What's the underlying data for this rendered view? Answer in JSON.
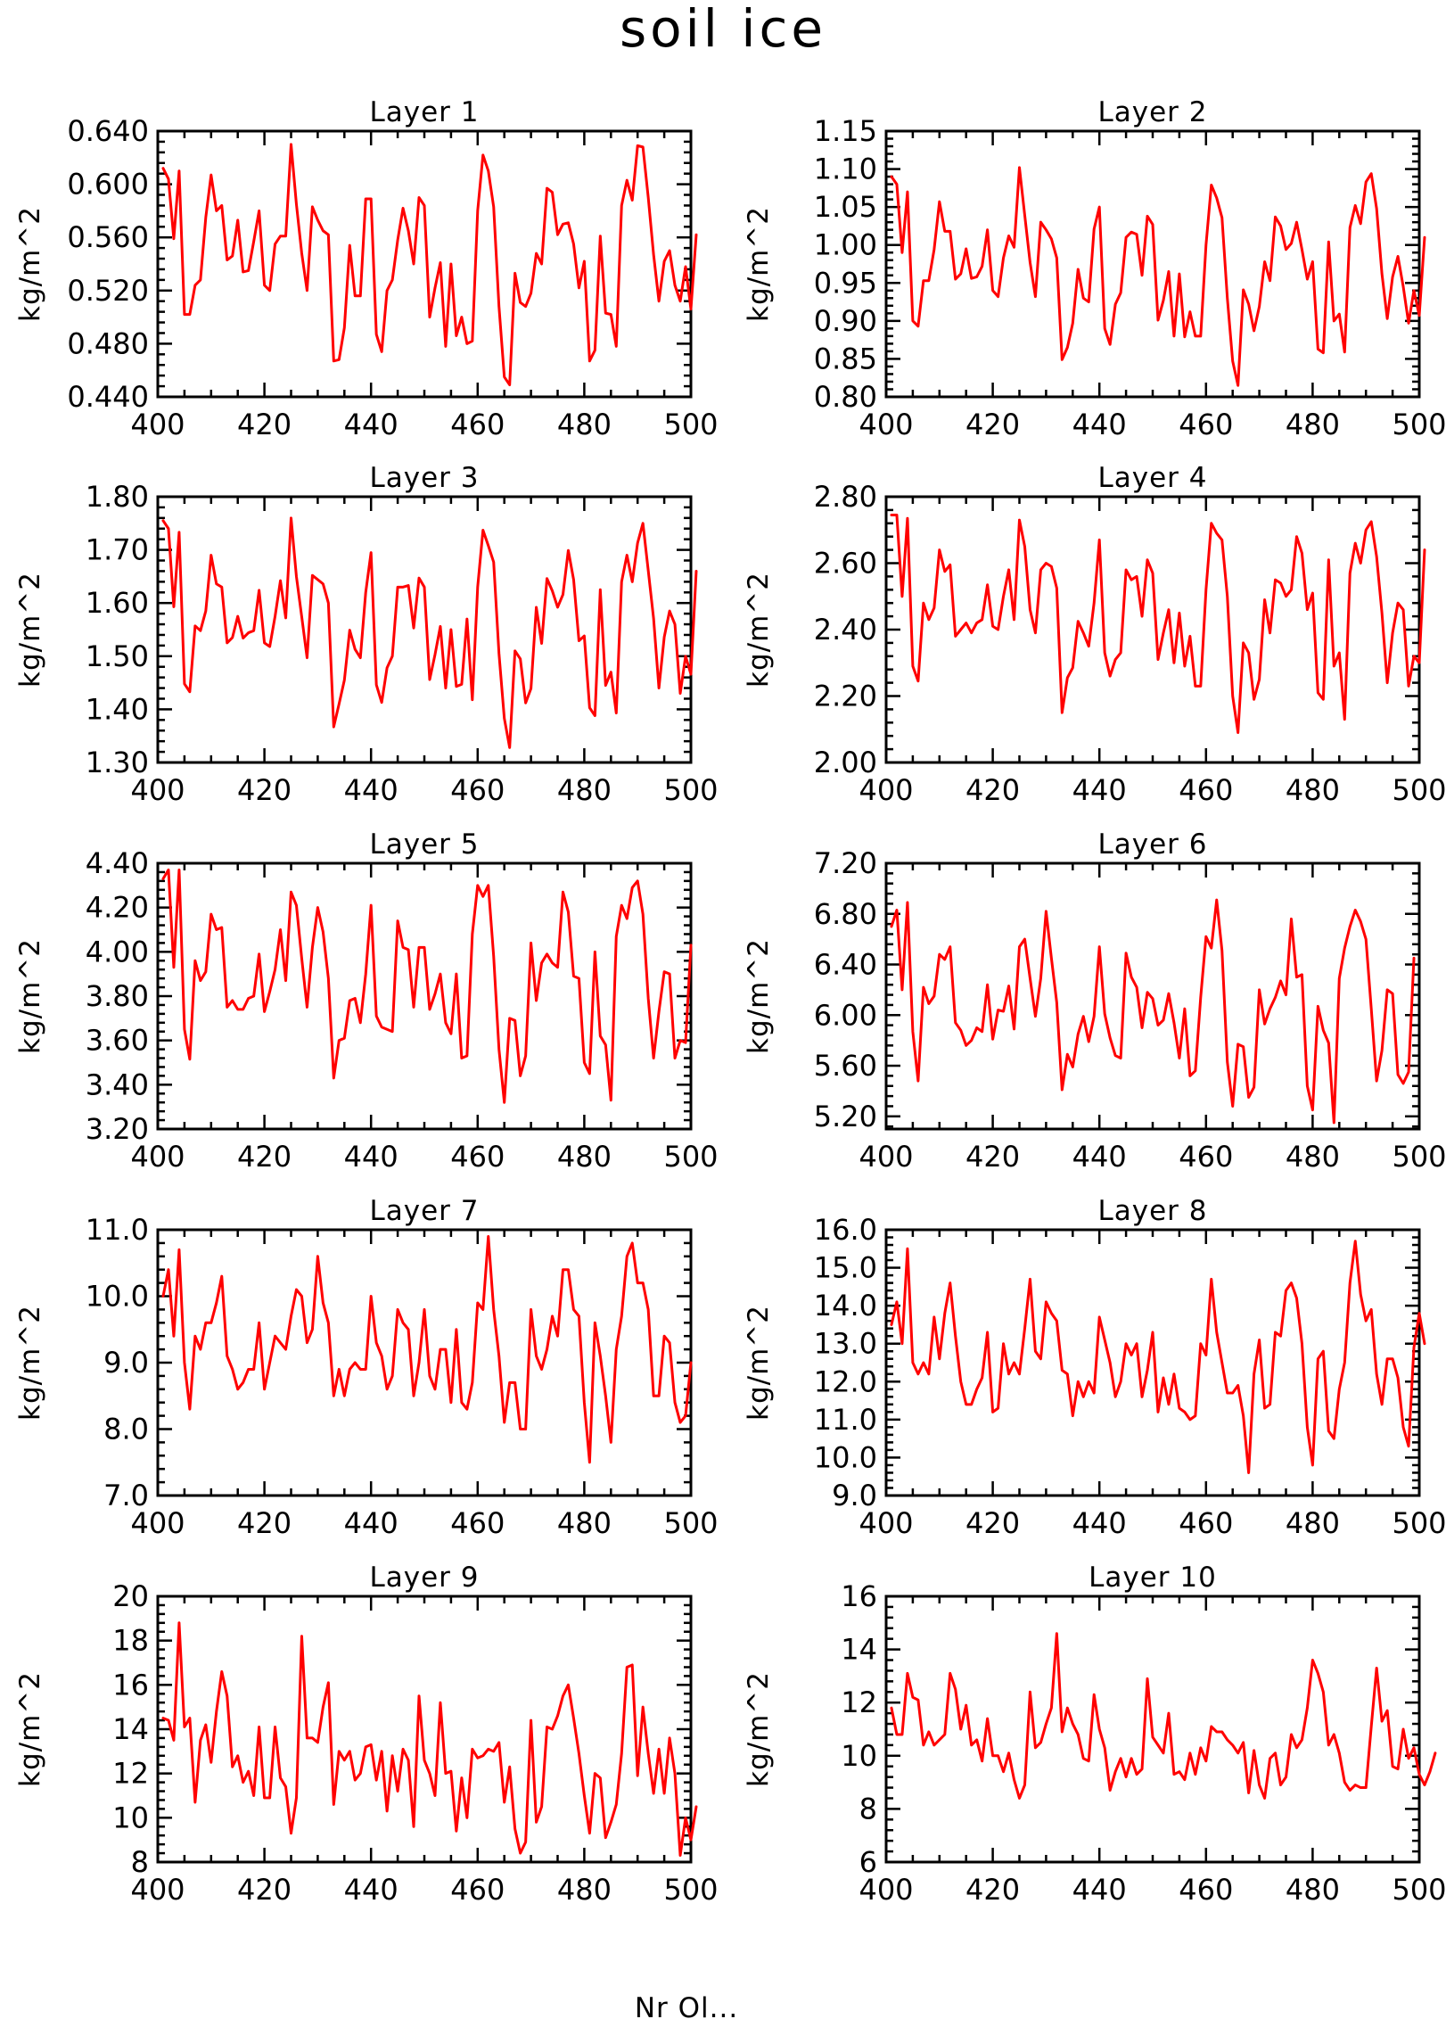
{
  "figure": {
    "title": "soil ice",
    "footer": "Nr Ol..."
  },
  "colors": {
    "line": "#ff0000",
    "axes": "#000000",
    "background": "#ffffff"
  },
  "chart_data": [
    {
      "type": "line",
      "title": "Layer 1",
      "ylabel": "kg/m^2",
      "xlim": [
        400,
        500
      ],
      "ylim": [
        0.44,
        0.64
      ],
      "xticks": [
        "400",
        "420",
        "440",
        "460",
        "480",
        "500"
      ],
      "yticks": [
        "0.440",
        "0.480",
        "0.520",
        "0.560",
        "0.600",
        "0.640"
      ],
      "x_start": 401,
      "x_step": 1,
      "values": [
        0.612,
        0.604,
        0.559,
        0.61,
        0.502,
        0.502,
        0.524,
        0.528,
        0.575,
        0.607,
        0.58,
        0.584,
        0.543,
        0.546,
        0.573,
        0.534,
        0.535,
        0.557,
        0.58,
        0.524,
        0.52,
        0.555,
        0.561,
        0.561,
        0.63,
        0.585,
        0.548,
        0.52,
        0.583,
        0.573,
        0.565,
        0.562,
        0.467,
        0.468,
        0.492,
        0.554,
        0.516,
        0.516,
        0.589,
        0.589,
        0.487,
        0.474,
        0.52,
        0.528,
        0.558,
        0.582,
        0.565,
        0.54,
        0.59,
        0.584,
        0.5,
        0.522,
        0.541,
        0.478,
        0.54,
        0.486,
        0.5,
        0.48,
        0.482,
        0.58,
        0.622,
        0.61,
        0.583,
        0.508,
        0.455,
        0.449,
        0.533,
        0.511,
        0.508,
        0.518,
        0.548,
        0.54,
        0.597,
        0.594,
        0.562,
        0.57,
        0.571,
        0.555,
        0.522,
        0.542,
        0.467,
        0.475,
        0.561,
        0.503,
        0.502,
        0.478,
        0.584,
        0.603,
        0.588,
        0.629,
        0.628,
        0.59,
        0.547,
        0.512,
        0.542,
        0.55,
        0.524,
        0.512,
        0.538,
        0.506,
        0.562
      ]
    },
    {
      "type": "line",
      "title": "Layer 2",
      "ylabel": "kg/m^2",
      "xlim": [
        400,
        500
      ],
      "ylim": [
        0.8,
        1.15
      ],
      "xticks": [
        "400",
        "420",
        "440",
        "460",
        "480",
        "500"
      ],
      "yticks": [
        "0.80",
        "0.85",
        "0.90",
        "0.95",
        "1.00",
        "1.05",
        "1.10",
        "1.15"
      ],
      "x_start": 401,
      "x_step": 1,
      "values": [
        1.09,
        1.08,
        0.99,
        1.07,
        0.9,
        0.893,
        0.953,
        0.953,
        0.994,
        1.057,
        1.018,
        1.018,
        0.955,
        0.962,
        0.995,
        0.956,
        0.958,
        0.972,
        1.02,
        0.94,
        0.932,
        0.983,
        1.012,
        0.997,
        1.102,
        1.039,
        0.977,
        0.932,
        1.03,
        1.02,
        1.008,
        0.983,
        0.849,
        0.865,
        0.897,
        0.968,
        0.93,
        0.925,
        1.021,
        1.05,
        0.89,
        0.869,
        0.922,
        0.937,
        1.01,
        1.017,
        1.014,
        0.96,
        1.038,
        1.027,
        0.901,
        0.927,
        0.965,
        0.88,
        0.962,
        0.879,
        0.912,
        0.88,
        0.88,
        1.0,
        1.079,
        1.062,
        1.036,
        0.93,
        0.847,
        0.815,
        0.941,
        0.922,
        0.887,
        0.919,
        0.978,
        0.953,
        1.037,
        1.025,
        0.994,
        1.002,
        1.03,
        0.994,
        0.955,
        0.978,
        0.863,
        0.858,
        1.004,
        0.9,
        0.909,
        0.859,
        1.023,
        1.052,
        1.028,
        1.083,
        1.094,
        1.048,
        0.962,
        0.903,
        0.958,
        0.985,
        0.945,
        0.897,
        0.94,
        0.907,
        1.01
      ]
    },
    {
      "type": "line",
      "title": "Layer 3",
      "ylabel": "kg/m^2",
      "xlim": [
        400,
        500
      ],
      "ylim": [
        1.3,
        1.8
      ],
      "xticks": [
        "400",
        "420",
        "440",
        "460",
        "480",
        "500"
      ],
      "yticks": [
        "1.30",
        "1.40",
        "1.50",
        "1.60",
        "1.70",
        "1.80"
      ],
      "x_start": 401,
      "x_step": 1,
      "values": [
        1.755,
        1.74,
        1.593,
        1.733,
        1.448,
        1.433,
        1.557,
        1.548,
        1.585,
        1.69,
        1.636,
        1.63,
        1.525,
        1.535,
        1.575,
        1.534,
        1.544,
        1.548,
        1.624,
        1.525,
        1.518,
        1.575,
        1.642,
        1.572,
        1.76,
        1.65,
        1.574,
        1.497,
        1.652,
        1.644,
        1.636,
        1.6,
        1.367,
        1.41,
        1.455,
        1.549,
        1.513,
        1.497,
        1.62,
        1.695,
        1.446,
        1.413,
        1.478,
        1.5,
        1.63,
        1.63,
        1.633,
        1.553,
        1.647,
        1.63,
        1.456,
        1.503,
        1.556,
        1.44,
        1.55,
        1.443,
        1.447,
        1.57,
        1.418,
        1.63,
        1.737,
        1.708,
        1.677,
        1.505,
        1.383,
        1.328,
        1.51,
        1.495,
        1.412,
        1.439,
        1.592,
        1.524,
        1.646,
        1.623,
        1.592,
        1.616,
        1.699,
        1.644,
        1.529,
        1.538,
        1.403,
        1.388,
        1.625,
        1.445,
        1.47,
        1.393,
        1.64,
        1.69,
        1.64,
        1.713,
        1.75,
        1.661,
        1.571,
        1.44,
        1.536,
        1.585,
        1.56,
        1.43,
        1.5,
        1.466,
        1.66
      ]
    },
    {
      "type": "line",
      "title": "Layer 4",
      "ylabel": "kg/m^2",
      "xlim": [
        400,
        500
      ],
      "ylim": [
        2.0,
        2.8
      ],
      "xticks": [
        "400",
        "420",
        "440",
        "460",
        "480",
        "500"
      ],
      "yticks": [
        "2.00",
        "2.20",
        "2.40",
        "2.60",
        "2.80"
      ],
      "x_start": 401,
      "x_step": 1,
      "values": [
        2.745,
        2.745,
        2.5,
        2.735,
        2.29,
        2.245,
        2.48,
        2.43,
        2.465,
        2.64,
        2.575,
        2.595,
        2.38,
        2.4,
        2.42,
        2.39,
        2.42,
        2.43,
        2.535,
        2.41,
        2.4,
        2.5,
        2.58,
        2.43,
        2.73,
        2.65,
        2.46,
        2.39,
        2.58,
        2.6,
        2.59,
        2.525,
        2.15,
        2.255,
        2.285,
        2.425,
        2.39,
        2.35,
        2.48,
        2.67,
        2.33,
        2.26,
        2.31,
        2.33,
        2.58,
        2.55,
        2.56,
        2.44,
        2.61,
        2.57,
        2.31,
        2.39,
        2.46,
        2.3,
        2.45,
        2.29,
        2.38,
        2.23,
        2.23,
        2.52,
        2.72,
        2.69,
        2.67,
        2.5,
        2.2,
        2.09,
        2.36,
        2.33,
        2.19,
        2.25,
        2.49,
        2.39,
        2.55,
        2.54,
        2.5,
        2.52,
        2.68,
        2.63,
        2.46,
        2.51,
        2.21,
        2.19,
        2.61,
        2.29,
        2.33,
        2.13,
        2.57,
        2.66,
        2.6,
        2.7,
        2.725,
        2.62,
        2.45,
        2.24,
        2.39,
        2.48,
        2.46,
        2.23,
        2.32,
        2.3,
        2.64
      ]
    },
    {
      "type": "line",
      "title": "Layer 5",
      "ylabel": "kg/m^2",
      "xlim": [
        400,
        500
      ],
      "ylim": [
        3.2,
        4.4
      ],
      "xticks": [
        "400",
        "420",
        "440",
        "460",
        "480",
        "500"
      ],
      "yticks": [
        "3.20",
        "3.40",
        "3.60",
        "3.80",
        "4.00",
        "4.20",
        "4.40"
      ],
      "x_start": 401,
      "x_step": 1,
      "values": [
        4.33,
        4.37,
        3.93,
        4.37,
        3.65,
        3.515,
        3.96,
        3.87,
        3.91,
        4.17,
        4.1,
        4.11,
        3.75,
        3.78,
        3.74,
        3.74,
        3.79,
        3.8,
        3.99,
        3.73,
        3.82,
        3.92,
        4.1,
        3.87,
        4.27,
        4.21,
        3.97,
        3.75,
        4.02,
        4.2,
        4.09,
        3.88,
        3.43,
        3.6,
        3.61,
        3.78,
        3.79,
        3.68,
        3.9,
        4.21,
        3.71,
        3.66,
        3.65,
        3.64,
        4.14,
        4.02,
        4.01,
        3.75,
        4.02,
        4.02,
        3.74,
        3.81,
        3.9,
        3.68,
        3.63,
        3.9,
        3.52,
        3.53,
        4.08,
        4.3,
        4.25,
        4.3,
        3.98,
        3.56,
        3.32,
        3.7,
        3.69,
        3.44,
        3.53,
        4.04,
        3.78,
        3.95,
        3.99,
        3.95,
        3.93,
        4.27,
        4.18,
        3.89,
        3.88,
        3.5,
        3.45,
        4.0,
        3.62,
        3.58,
        3.33,
        4.07,
        4.21,
        4.15,
        4.29,
        4.32,
        4.17,
        3.79,
        3.52,
        3.73,
        3.91,
        3.9,
        3.52,
        3.6,
        3.59,
        4.03
      ]
    },
    {
      "type": "line",
      "title": "Layer 6",
      "ylabel": "kg/m^2",
      "xlim": [
        400,
        500
      ],
      "ylim": [
        5.1,
        7.2
      ],
      "xticks": [
        "400",
        "420",
        "440",
        "460",
        "480",
        "500"
      ],
      "yticks": [
        "5.20",
        "5.60",
        "6.00",
        "6.40",
        "6.80",
        "7.20"
      ],
      "x_start": 401,
      "x_step": 1,
      "values": [
        6.7,
        6.83,
        6.2,
        6.89,
        5.87,
        5.48,
        6.22,
        6.09,
        6.15,
        6.48,
        6.44,
        6.54,
        5.94,
        5.88,
        5.76,
        5.8,
        5.9,
        5.87,
        6.24,
        5.81,
        6.04,
        6.03,
        6.23,
        5.89,
        6.54,
        6.6,
        6.29,
        5.99,
        6.29,
        6.82,
        6.45,
        6.1,
        5.41,
        5.69,
        5.59,
        5.85,
        5.99,
        5.79,
        5.99,
        6.54,
        6.01,
        5.82,
        5.68,
        5.66,
        6.49,
        6.3,
        6.22,
        5.9,
        6.18,
        6.13,
        5.92,
        5.96,
        6.17,
        5.94,
        5.66,
        6.05,
        5.52,
        5.56,
        6.14,
        6.62,
        6.53,
        6.91,
        6.51,
        5.63,
        5.28,
        5.77,
        5.75,
        5.35,
        5.43,
        6.2,
        5.93,
        6.05,
        6.14,
        6.27,
        6.16,
        6.76,
        6.3,
        6.32,
        5.44,
        5.25,
        6.07,
        5.88,
        5.78,
        5.15,
        6.29,
        6.53,
        6.7,
        6.83,
        6.74,
        6.6,
        6.05,
        5.48,
        5.72,
        6.2,
        6.17,
        5.53,
        5.46,
        5.55,
        6.45
      ]
    },
    {
      "type": "line",
      "title": "Layer 7",
      "ylabel": "kg/m^2",
      "xlim": [
        400,
        500
      ],
      "ylim": [
        7.0,
        11.0
      ],
      "xticks": [
        "400",
        "420",
        "440",
        "460",
        "480",
        "500"
      ],
      "yticks": [
        "7.0",
        "8.0",
        "9.0",
        "10.0",
        "11.0"
      ],
      "x_start": 401,
      "x_step": 1,
      "values": [
        10.0,
        10.4,
        9.4,
        10.7,
        9.0,
        8.3,
        9.4,
        9.2,
        9.6,
        9.6,
        9.9,
        10.3,
        9.1,
        8.9,
        8.6,
        8.7,
        8.9,
        8.9,
        9.6,
        8.6,
        9.0,
        9.4,
        9.3,
        9.2,
        9.7,
        10.1,
        10.0,
        9.3,
        9.5,
        10.6,
        9.9,
        9.6,
        8.5,
        8.9,
        8.5,
        8.9,
        9.0,
        8.9,
        8.9,
        10.0,
        9.3,
        9.1,
        8.6,
        8.8,
        9.8,
        9.6,
        9.5,
        8.5,
        9.0,
        9.8,
        8.8,
        8.6,
        9.2,
        9.2,
        8.4,
        9.5,
        8.4,
        8.3,
        8.7,
        9.9,
        9.8,
        10.9,
        9.8,
        9.1,
        8.1,
        8.7,
        8.7,
        8.0,
        8.0,
        9.8,
        9.1,
        8.9,
        9.2,
        9.7,
        9.4,
        10.4,
        10.4,
        9.8,
        9.7,
        8.4,
        7.5,
        9.6,
        9.1,
        8.5,
        7.8,
        9.2,
        9.7,
        10.6,
        10.8,
        10.2,
        10.2,
        9.8,
        8.5,
        8.5,
        9.4,
        9.3,
        8.4,
        8.1,
        8.2,
        9.0
      ]
    },
    {
      "type": "line",
      "title": "Layer 8",
      "ylabel": "kg/m^2",
      "xlim": [
        400,
        500
      ],
      "ylim": [
        9.0,
        16.0
      ],
      "xticks": [
        "400",
        "420",
        "440",
        "460",
        "480",
        "500"
      ],
      "yticks": [
        "9.0",
        "10.0",
        "11.0",
        "12.0",
        "13.0",
        "14.0",
        "15.0",
        "16.0"
      ],
      "x_start": 401,
      "x_step": 1,
      "values": [
        13.5,
        14.1,
        13.0,
        15.5,
        12.5,
        12.2,
        12.5,
        12.2,
        13.7,
        12.6,
        13.8,
        14.6,
        13.2,
        12.0,
        11.4,
        11.4,
        11.8,
        12.1,
        13.3,
        11.2,
        11.3,
        13.0,
        12.2,
        12.5,
        12.2,
        13.4,
        14.7,
        12.8,
        12.6,
        14.1,
        13.8,
        13.6,
        12.3,
        12.2,
        11.1,
        12.0,
        11.6,
        12.0,
        11.7,
        13.7,
        13.1,
        12.5,
        11.6,
        12.0,
        13.0,
        12.7,
        13.0,
        11.6,
        12.3,
        13.3,
        11.2,
        12.1,
        11.4,
        12.2,
        11.3,
        11.2,
        11.0,
        11.1,
        13.0,
        12.7,
        14.7,
        13.3,
        12.5,
        11.7,
        11.7,
        11.9,
        11.1,
        9.6,
        12.2,
        13.1,
        11.3,
        11.4,
        13.3,
        13.2,
        14.4,
        14.6,
        14.2,
        13.0,
        10.8,
        9.8,
        12.6,
        12.8,
        10.7,
        10.5,
        11.8,
        12.5,
        14.6,
        15.7,
        14.3,
        13.6,
        13.9,
        12.2,
        11.4,
        12.6,
        12.6,
        12.1,
        10.8,
        10.3,
        12.9,
        13.8,
        13.0
      ]
    },
    {
      "type": "line",
      "title": "Layer 9",
      "ylabel": "kg/m^2",
      "xlim": [
        400,
        500
      ],
      "ylim": [
        8,
        20
      ],
      "xticks": [
        "400",
        "420",
        "440",
        "460",
        "480",
        "500"
      ],
      "yticks": [
        "8",
        "10",
        "12",
        "14",
        "16",
        "18",
        "20"
      ],
      "x_start": 401,
      "x_step": 1,
      "values": [
        14.5,
        14.4,
        13.5,
        18.8,
        14.1,
        14.5,
        10.7,
        13.5,
        14.2,
        12.5,
        14.8,
        16.6,
        15.5,
        12.3,
        12.8,
        11.6,
        12.1,
        11.0,
        14.1,
        10.9,
        10.9,
        14.1,
        11.8,
        11.4,
        9.3,
        10.9,
        18.2,
        13.6,
        13.6,
        13.4,
        15.0,
        16.1,
        10.6,
        13.0,
        12.6,
        13.0,
        11.7,
        12.0,
        13.2,
        13.3,
        11.7,
        13.0,
        10.3,
        12.8,
        11.2,
        13.1,
        12.6,
        9.6,
        15.5,
        12.6,
        12.0,
        11.0,
        15.2,
        12.0,
        12.1,
        9.4,
        11.8,
        10.0,
        13.1,
        12.7,
        12.8,
        13.1,
        13.0,
        13.4,
        10.7,
        12.3,
        9.5,
        8.4,
        8.9,
        14.4,
        9.8,
        10.5,
        14.1,
        14.0,
        14.6,
        15.5,
        16.0,
        14.5,
        12.9,
        11.0,
        9.3,
        12.0,
        11.8,
        9.1,
        9.8,
        10.6,
        12.9,
        16.8,
        16.9,
        11.9,
        15.0,
        12.9,
        11.1,
        13.1,
        11.1,
        13.6,
        12.0,
        8.3,
        10.0,
        9.0,
        10.5
      ]
    },
    {
      "type": "line",
      "title": "Layer 10",
      "ylabel": "kg/m^2",
      "xlim": [
        400,
        500
      ],
      "ylim": [
        6,
        16
      ],
      "xticks": [
        "400",
        "420",
        "440",
        "460",
        "480",
        "500"
      ],
      "yticks": [
        "6",
        "8",
        "10",
        "12",
        "14",
        "16"
      ],
      "x_start": 401,
      "x_step": 1,
      "values": [
        11.8,
        10.8,
        10.8,
        13.1,
        12.2,
        12.1,
        10.4,
        10.9,
        10.4,
        10.6,
        10.8,
        13.1,
        12.5,
        11.0,
        11.9,
        10.4,
        10.6,
        9.8,
        11.4,
        10.0,
        10.0,
        9.4,
        10.1,
        9.1,
        8.4,
        8.9,
        12.4,
        10.3,
        10.5,
        11.2,
        11.8,
        14.6,
        10.9,
        11.8,
        11.2,
        10.8,
        9.9,
        9.8,
        12.3,
        11.0,
        10.3,
        8.7,
        9.4,
        9.9,
        9.2,
        9.9,
        9.3,
        9.5,
        12.9,
        10.7,
        10.4,
        10.1,
        11.6,
        9.3,
        9.4,
        9.1,
        10.1,
        9.3,
        10.3,
        9.8,
        11.1,
        10.9,
        10.9,
        10.6,
        10.4,
        10.1,
        10.5,
        8.6,
        10.2,
        8.9,
        8.4,
        9.9,
        10.1,
        8.9,
        9.2,
        10.8,
        10.3,
        10.6,
        11.8,
        13.6,
        13.1,
        12.4,
        10.4,
        10.8,
        10.1,
        9.0,
        8.7,
        8.9,
        8.8,
        8.8,
        11.1,
        13.3,
        11.3,
        11.7,
        9.6,
        9.5,
        11.0,
        9.9,
        10.3,
        9.3,
        8.9,
        9.4,
        10.1
      ]
    }
  ]
}
